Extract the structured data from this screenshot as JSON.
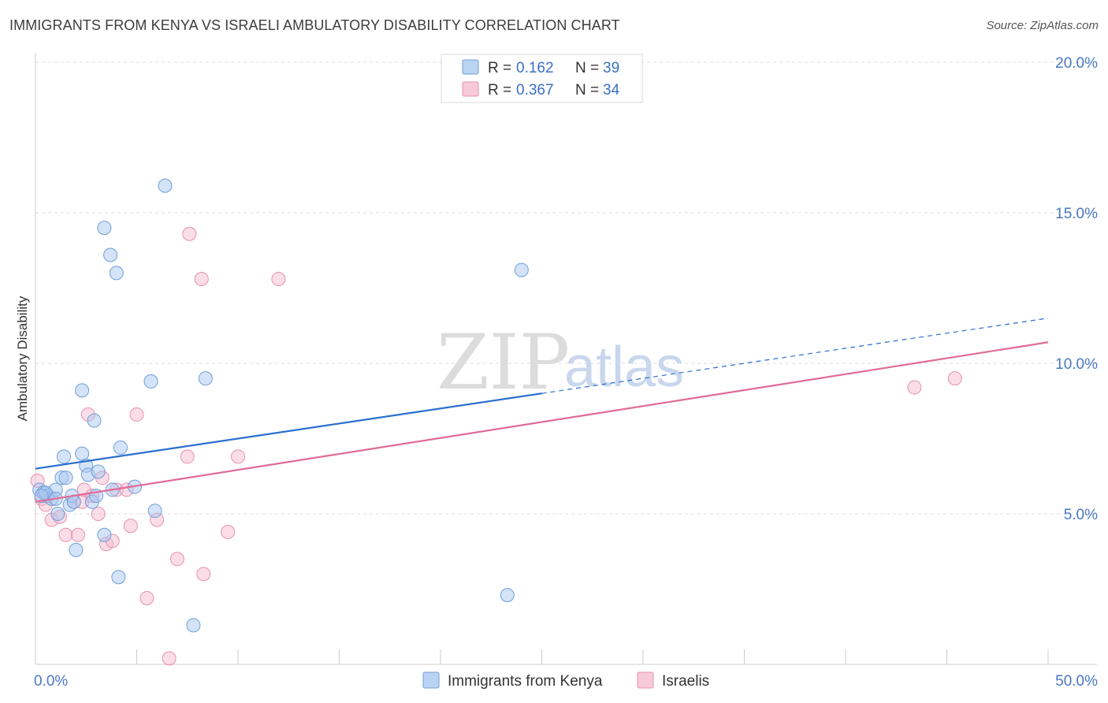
{
  "title": "IMMIGRANTS FROM KENYA VS ISRAELI AMBULATORY DISABILITY CORRELATION CHART",
  "source": "Source: ZipAtlas.com",
  "watermark": {
    "zip": "ZIP",
    "atlas": "atlas"
  },
  "colors": {
    "blue_fill": "#a9c8f0",
    "blue_stroke": "#6f9fd8",
    "blue_line": "#2a6fcf",
    "pink_fill": "#f6bcd0",
    "pink_stroke": "#e691b0",
    "pink_line": "#e06b98",
    "grid": "#dddddd",
    "tick_text": "#4a78c2"
  },
  "legend": {
    "rows": [
      {
        "r_label": "R =",
        "r_value": "0.162",
        "n_label": "N =",
        "n_value": "39"
      },
      {
        "r_label": "R =",
        "r_value": "0.367",
        "n_label": "N =",
        "n_value": "34"
      }
    ]
  },
  "chart_data": {
    "type": "scatter",
    "title": "IMMIGRANTS FROM KENYA VS ISRAELI AMBULATORY DISABILITY CORRELATION CHART",
    "xlabel": "",
    "ylabel": "Ambulatory Disability",
    "xlim": [
      0,
      50
    ],
    "ylim": [
      0,
      20
    ],
    "x_tick_labels": [
      "0.0%",
      "50.0%"
    ],
    "y_ticks": [
      5,
      10,
      15,
      20
    ],
    "y_tick_labels": [
      "5.0%",
      "10.0%",
      "15.0%",
      "20.0%"
    ],
    "grid": true,
    "legend_position": "top-center",
    "series": [
      {
        "name": "Immigrants from Kenya",
        "R": 0.162,
        "N": 39,
        "trend": {
          "x0": 0,
          "y0": 6.5,
          "x1": 25,
          "y1": 9.0,
          "dashed_to_x": 50,
          "dashed_to_y": 11.5
        },
        "points": [
          [
            0.2,
            5.8
          ],
          [
            0.4,
            5.7
          ],
          [
            0.6,
            5.6
          ],
          [
            0.8,
            5.5
          ],
          [
            1.0,
            5.8
          ],
          [
            1.1,
            5.0
          ],
          [
            1.3,
            6.2
          ],
          [
            1.4,
            6.9
          ],
          [
            1.5,
            6.2
          ],
          [
            1.7,
            5.3
          ],
          [
            1.8,
            5.6
          ],
          [
            1.9,
            5.4
          ],
          [
            2.0,
            3.8
          ],
          [
            2.3,
            7.0
          ],
          [
            2.3,
            9.1
          ],
          [
            2.5,
            6.6
          ],
          [
            2.6,
            6.3
          ],
          [
            2.8,
            5.4
          ],
          [
            2.9,
            8.1
          ],
          [
            3.0,
            5.6
          ],
          [
            3.1,
            6.4
          ],
          [
            3.4,
            14.5
          ],
          [
            3.4,
            4.3
          ],
          [
            3.7,
            13.6
          ],
          [
            3.8,
            5.8
          ],
          [
            4.0,
            13.0
          ],
          [
            4.1,
            2.9
          ],
          [
            4.2,
            7.2
          ],
          [
            4.9,
            5.9
          ],
          [
            5.7,
            9.4
          ],
          [
            5.9,
            5.1
          ],
          [
            6.4,
            15.9
          ],
          [
            7.8,
            1.3
          ],
          [
            8.4,
            9.5
          ],
          [
            24.0,
            13.1
          ],
          [
            23.3,
            2.3
          ],
          [
            0.5,
            5.7
          ],
          [
            1.0,
            5.5
          ],
          [
            0.3,
            5.6
          ]
        ]
      },
      {
        "name": "Israelis",
        "R": 0.367,
        "N": 34,
        "trend": {
          "x0": 0,
          "y0": 5.4,
          "x1": 50,
          "y1": 10.7
        },
        "points": [
          [
            0.1,
            6.1
          ],
          [
            0.3,
            5.5
          ],
          [
            0.5,
            5.3
          ],
          [
            0.8,
            4.8
          ],
          [
            1.2,
            4.9
          ],
          [
            1.5,
            4.3
          ],
          [
            1.9,
            5.4
          ],
          [
            2.1,
            4.3
          ],
          [
            2.3,
            5.4
          ],
          [
            2.4,
            5.8
          ],
          [
            2.6,
            8.3
          ],
          [
            2.8,
            5.6
          ],
          [
            3.1,
            5.0
          ],
          [
            3.3,
            6.2
          ],
          [
            3.5,
            4.0
          ],
          [
            3.8,
            4.1
          ],
          [
            4.0,
            5.8
          ],
          [
            4.5,
            5.8
          ],
          [
            4.7,
            4.6
          ],
          [
            5.0,
            8.3
          ],
          [
            5.5,
            2.2
          ],
          [
            6.0,
            4.8
          ],
          [
            6.6,
            0.2
          ],
          [
            7.0,
            3.5
          ],
          [
            7.5,
            6.9
          ],
          [
            7.6,
            14.3
          ],
          [
            8.2,
            12.8
          ],
          [
            8.3,
            3.0
          ],
          [
            9.5,
            4.4
          ],
          [
            10.0,
            6.9
          ],
          [
            12.0,
            12.8
          ],
          [
            43.4,
            9.2
          ],
          [
            45.4,
            9.5
          ],
          [
            0.6,
            5.6
          ]
        ]
      }
    ]
  },
  "bottom_legend": {
    "items": [
      {
        "label": "Immigrants from Kenya"
      },
      {
        "label": "Israelis"
      }
    ]
  }
}
